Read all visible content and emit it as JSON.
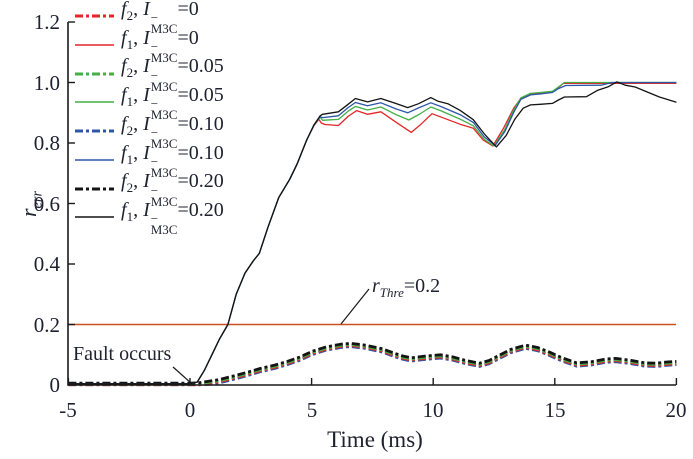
{
  "figure": {
    "bg": "#ffffff",
    "axis_color": "#1a1a1a",
    "text_color": "#1f2030"
  },
  "axes": {
    "x": {
      "label": "Time (ms)",
      "tick_labels": [
        "-5",
        "0",
        "5",
        "10",
        "15",
        "20"
      ],
      "tick_values": [
        -5,
        0,
        5,
        10,
        15,
        20
      ],
      "range": [
        -5,
        20
      ]
    },
    "y": {
      "label_main": "r",
      "label_sub": "err",
      "tick_labels": [
        "1.2",
        "1.0",
        "0.8",
        "0.6",
        "0.4",
        "0.2",
        "0"
      ],
      "tick_values": [
        1.2,
        1.0,
        0.8,
        0.6,
        0.4,
        0.2,
        0
      ],
      "range": [
        0,
        1.2
      ]
    }
  },
  "annotations": {
    "fault": {
      "text": "Fault occurs"
    },
    "threshold": {
      "var": "r",
      "var_sub": "Thre",
      "eq": "=0.2"
    }
  },
  "legend": {
    "common": {
      "fname": "f",
      "sep": ", ",
      "var": "I",
      "vsup": "−",
      "vsub": "M3C"
    },
    "entries": [
      {
        "fsub": "2",
        "eq": "=0",
        "style": "dashdot",
        "color": "#e42528"
      },
      {
        "fsub": "1",
        "eq": "=0",
        "style": "solid",
        "color": "#e42528"
      },
      {
        "fsub": "2",
        "eq": "=0.05",
        "style": "dashdot",
        "color": "#44af49"
      },
      {
        "fsub": "1",
        "eq": "=0.05",
        "style": "solid",
        "color": "#44af49"
      },
      {
        "fsub": "2",
        "eq": "=0.10",
        "style": "dashdot",
        "color": "#2d56a7"
      },
      {
        "fsub": "1",
        "eq": "=0.10",
        "style": "solid",
        "color": "#2d56a7"
      },
      {
        "fsub": "2",
        "eq": "=0.20",
        "style": "dashdot",
        "color": "#141414"
      },
      {
        "fsub": "1",
        "eq": "=0.20",
        "style": "solid",
        "color": "#141414"
      }
    ]
  },
  "chart_data": {
    "type": "line",
    "title": "",
    "xlabel": "Time (ms)",
    "ylabel": "r_err",
    "xlim": [
      -5,
      20
    ],
    "ylim": [
      0,
      1.2
    ],
    "grid": false,
    "legend_position": "upper-left-inside",
    "threshold": {
      "type": "hline",
      "value": 0.2,
      "label": "r_Thre=0.2",
      "color": "#c9511c"
    },
    "f2_base_points": [
      [
        -5,
        0.006
      ],
      [
        0,
        0.006
      ],
      [
        0.4,
        0.008
      ],
      [
        0.8,
        0.013
      ],
      [
        1.2,
        0.018
      ],
      [
        1.8,
        0.03
      ],
      [
        2.4,
        0.043
      ],
      [
        2.9,
        0.055
      ],
      [
        3.5,
        0.066
      ],
      [
        4.0,
        0.078
      ],
      [
        4.5,
        0.092
      ],
      [
        5.05,
        0.112
      ],
      [
        5.6,
        0.126
      ],
      [
        6.2,
        0.135
      ],
      [
        6.6,
        0.138
      ],
      [
        7.2,
        0.132
      ],
      [
        7.9,
        0.12
      ],
      [
        8.4,
        0.105
      ],
      [
        8.75,
        0.096
      ],
      [
        9.1,
        0.09
      ],
      [
        9.7,
        0.096
      ],
      [
        10.3,
        0.1
      ],
      [
        10.8,
        0.093
      ],
      [
        11.3,
        0.082
      ],
      [
        11.9,
        0.072
      ],
      [
        12.3,
        0.081
      ],
      [
        12.7,
        0.098
      ],
      [
        13.2,
        0.118
      ],
      [
        13.8,
        0.132
      ],
      [
        14.3,
        0.124
      ],
      [
        14.8,
        0.108
      ],
      [
        15.3,
        0.09
      ],
      [
        15.9,
        0.073
      ],
      [
        16.5,
        0.077
      ],
      [
        17.1,
        0.086
      ],
      [
        17.5,
        0.088
      ],
      [
        18.1,
        0.082
      ],
      [
        18.7,
        0.073
      ],
      [
        19.2,
        0.072
      ],
      [
        19.6,
        0.076
      ],
      [
        20,
        0.078
      ]
    ],
    "series": [
      {
        "name": "f2, I-M3C=0",
        "style": "dashdot",
        "color": "#e42528",
        "base": "f2",
        "offset": 0.0075
      },
      {
        "name": "f1, I-M3C=0",
        "style": "solid",
        "color": "#e42528",
        "points": [
          [
            -5,
            0.004
          ],
          [
            0,
            0.004
          ],
          [
            0.3,
            0.01
          ],
          [
            0.6,
            0.05
          ],
          [
            0.9,
            0.1
          ],
          [
            1.2,
            0.15
          ],
          [
            1.56,
            0.2
          ],
          [
            1.9,
            0.3
          ],
          [
            2.26,
            0.37
          ],
          [
            2.6,
            0.41
          ],
          [
            2.85,
            0.435
          ],
          [
            3.2,
            0.52
          ],
          [
            3.65,
            0.62
          ],
          [
            4.1,
            0.68
          ],
          [
            4.4,
            0.73
          ],
          [
            4.8,
            0.81
          ],
          [
            5.1,
            0.858
          ],
          [
            5.3,
            0.878
          ],
          [
            5.4,
            0.866
          ],
          [
            5.55,
            0.861
          ],
          [
            6.1,
            0.858
          ],
          [
            6.5,
            0.888
          ],
          [
            6.85,
            0.907
          ],
          [
            7.3,
            0.895
          ],
          [
            7.85,
            0.903
          ],
          [
            8.5,
            0.867
          ],
          [
            9.1,
            0.835
          ],
          [
            9.5,
            0.862
          ],
          [
            9.95,
            0.897
          ],
          [
            10.35,
            0.885
          ],
          [
            11.1,
            0.862
          ],
          [
            11.65,
            0.849
          ],
          [
            12.05,
            0.81
          ],
          [
            12.45,
            0.79
          ],
          [
            12.9,
            0.85
          ],
          [
            13.3,
            0.914
          ],
          [
            13.6,
            0.947
          ],
          [
            14.0,
            0.962
          ],
          [
            14.4,
            0.965
          ],
          [
            14.9,
            0.969
          ],
          [
            15.15,
            0.983
          ],
          [
            15.35,
            0.997
          ],
          [
            20,
            0.997
          ]
        ]
      },
      {
        "name": "f2, I-M3C=0.05",
        "style": "dashdot",
        "color": "#44af49",
        "base": "f2",
        "offset": 0.004
      },
      {
        "name": "f1, I-M3C=0.05",
        "style": "solid",
        "color": "#44af49",
        "points": [
          [
            -5,
            0.004
          ],
          [
            0,
            0.004
          ],
          [
            0.3,
            0.01
          ],
          [
            0.6,
            0.05
          ],
          [
            0.9,
            0.1
          ],
          [
            1.2,
            0.15
          ],
          [
            1.56,
            0.2
          ],
          [
            1.9,
            0.3
          ],
          [
            2.26,
            0.37
          ],
          [
            2.6,
            0.41
          ],
          [
            2.85,
            0.435
          ],
          [
            3.2,
            0.52
          ],
          [
            3.65,
            0.62
          ],
          [
            4.1,
            0.68
          ],
          [
            4.4,
            0.73
          ],
          [
            4.8,
            0.81
          ],
          [
            5.1,
            0.86
          ],
          [
            5.35,
            0.886
          ],
          [
            5.45,
            0.875
          ],
          [
            6.1,
            0.878
          ],
          [
            6.5,
            0.905
          ],
          [
            6.8,
            0.921
          ],
          [
            7.3,
            0.909
          ],
          [
            7.85,
            0.919
          ],
          [
            8.5,
            0.893
          ],
          [
            9.0,
            0.876
          ],
          [
            9.45,
            0.896
          ],
          [
            9.9,
            0.919
          ],
          [
            10.3,
            0.907
          ],
          [
            11.1,
            0.879
          ],
          [
            11.65,
            0.857
          ],
          [
            12.1,
            0.812
          ],
          [
            12.5,
            0.79
          ],
          [
            12.95,
            0.845
          ],
          [
            13.3,
            0.908
          ],
          [
            13.6,
            0.949
          ],
          [
            14.0,
            0.964
          ],
          [
            14.4,
            0.967
          ],
          [
            14.9,
            0.971
          ],
          [
            15.15,
            0.985
          ],
          [
            15.4,
            1.0
          ],
          [
            20,
            1.0
          ]
        ]
      },
      {
        "name": "f2, I-M3C=0.10",
        "style": "dashdot",
        "color": "#2d56a7",
        "base": "f2",
        "offset": 0.011
      },
      {
        "name": "f1, I-M3C=0.10",
        "style": "solid",
        "color": "#2d56a7",
        "points": [
          [
            -5,
            0.004
          ],
          [
            0,
            0.004
          ],
          [
            0.3,
            0.01
          ],
          [
            0.6,
            0.05
          ],
          [
            0.9,
            0.1
          ],
          [
            1.2,
            0.15
          ],
          [
            1.56,
            0.2
          ],
          [
            1.9,
            0.3
          ],
          [
            2.26,
            0.37
          ],
          [
            2.6,
            0.41
          ],
          [
            2.85,
            0.435
          ],
          [
            3.2,
            0.52
          ],
          [
            3.65,
            0.62
          ],
          [
            4.1,
            0.68
          ],
          [
            4.4,
            0.73
          ],
          [
            4.8,
            0.81
          ],
          [
            5.1,
            0.86
          ],
          [
            5.35,
            0.887
          ],
          [
            5.45,
            0.884
          ],
          [
            6.1,
            0.89
          ],
          [
            6.5,
            0.917
          ],
          [
            6.8,
            0.934
          ],
          [
            7.3,
            0.923
          ],
          [
            7.85,
            0.933
          ],
          [
            8.5,
            0.912
          ],
          [
            8.95,
            0.9
          ],
          [
            9.4,
            0.916
          ],
          [
            9.9,
            0.933
          ],
          [
            10.3,
            0.921
          ],
          [
            11.1,
            0.894
          ],
          [
            11.65,
            0.868
          ],
          [
            12.1,
            0.82
          ],
          [
            12.55,
            0.792
          ],
          [
            12.95,
            0.838
          ],
          [
            13.3,
            0.9
          ],
          [
            13.6,
            0.944
          ],
          [
            14.0,
            0.959
          ],
          [
            14.4,
            0.962
          ],
          [
            14.9,
            0.967
          ],
          [
            15.15,
            0.98
          ],
          [
            15.45,
            0.99
          ],
          [
            16.9,
            0.991
          ],
          [
            17.35,
            1.0
          ],
          [
            20,
            1.0
          ]
        ]
      },
      {
        "name": "f2, I-M3C=0.20",
        "style": "dashdot",
        "color": "#141414",
        "base": "f2",
        "offset": 0
      },
      {
        "name": "f1, I-M3C=0.20",
        "style": "solid",
        "color": "#141414",
        "points": [
          [
            -5,
            0.004
          ],
          [
            0,
            0.004
          ],
          [
            0.3,
            0.01
          ],
          [
            0.6,
            0.05
          ],
          [
            0.9,
            0.1
          ],
          [
            1.2,
            0.15
          ],
          [
            1.56,
            0.2
          ],
          [
            1.9,
            0.3
          ],
          [
            2.26,
            0.37
          ],
          [
            2.6,
            0.41
          ],
          [
            2.85,
            0.435
          ],
          [
            3.2,
            0.52
          ],
          [
            3.65,
            0.62
          ],
          [
            4.1,
            0.68
          ],
          [
            4.4,
            0.73
          ],
          [
            4.8,
            0.81
          ],
          [
            5.1,
            0.86
          ],
          [
            5.35,
            0.89
          ],
          [
            5.45,
            0.895
          ],
          [
            6.1,
            0.903
          ],
          [
            6.5,
            0.928
          ],
          [
            6.8,
            0.947
          ],
          [
            7.3,
            0.936
          ],
          [
            7.85,
            0.947
          ],
          [
            8.5,
            0.93
          ],
          [
            8.95,
            0.917
          ],
          [
            9.4,
            0.93
          ],
          [
            9.9,
            0.95
          ],
          [
            10.2,
            0.938
          ],
          [
            10.6,
            0.93
          ],
          [
            11.1,
            0.908
          ],
          [
            11.65,
            0.877
          ],
          [
            12.1,
            0.83
          ],
          [
            12.6,
            0.787
          ],
          [
            13.0,
            0.825
          ],
          [
            13.35,
            0.878
          ],
          [
            13.7,
            0.915
          ],
          [
            14.0,
            0.926
          ],
          [
            14.4,
            0.928
          ],
          [
            14.9,
            0.931
          ],
          [
            15.15,
            0.942
          ],
          [
            15.4,
            0.952
          ],
          [
            16.3,
            0.953
          ],
          [
            16.75,
            0.974
          ],
          [
            17.2,
            0.986
          ],
          [
            17.55,
            1.002
          ],
          [
            17.9,
            0.991
          ],
          [
            18.3,
            0.985
          ],
          [
            18.7,
            0.972
          ],
          [
            19.3,
            0.952
          ],
          [
            20,
            0.935
          ]
        ]
      }
    ]
  }
}
